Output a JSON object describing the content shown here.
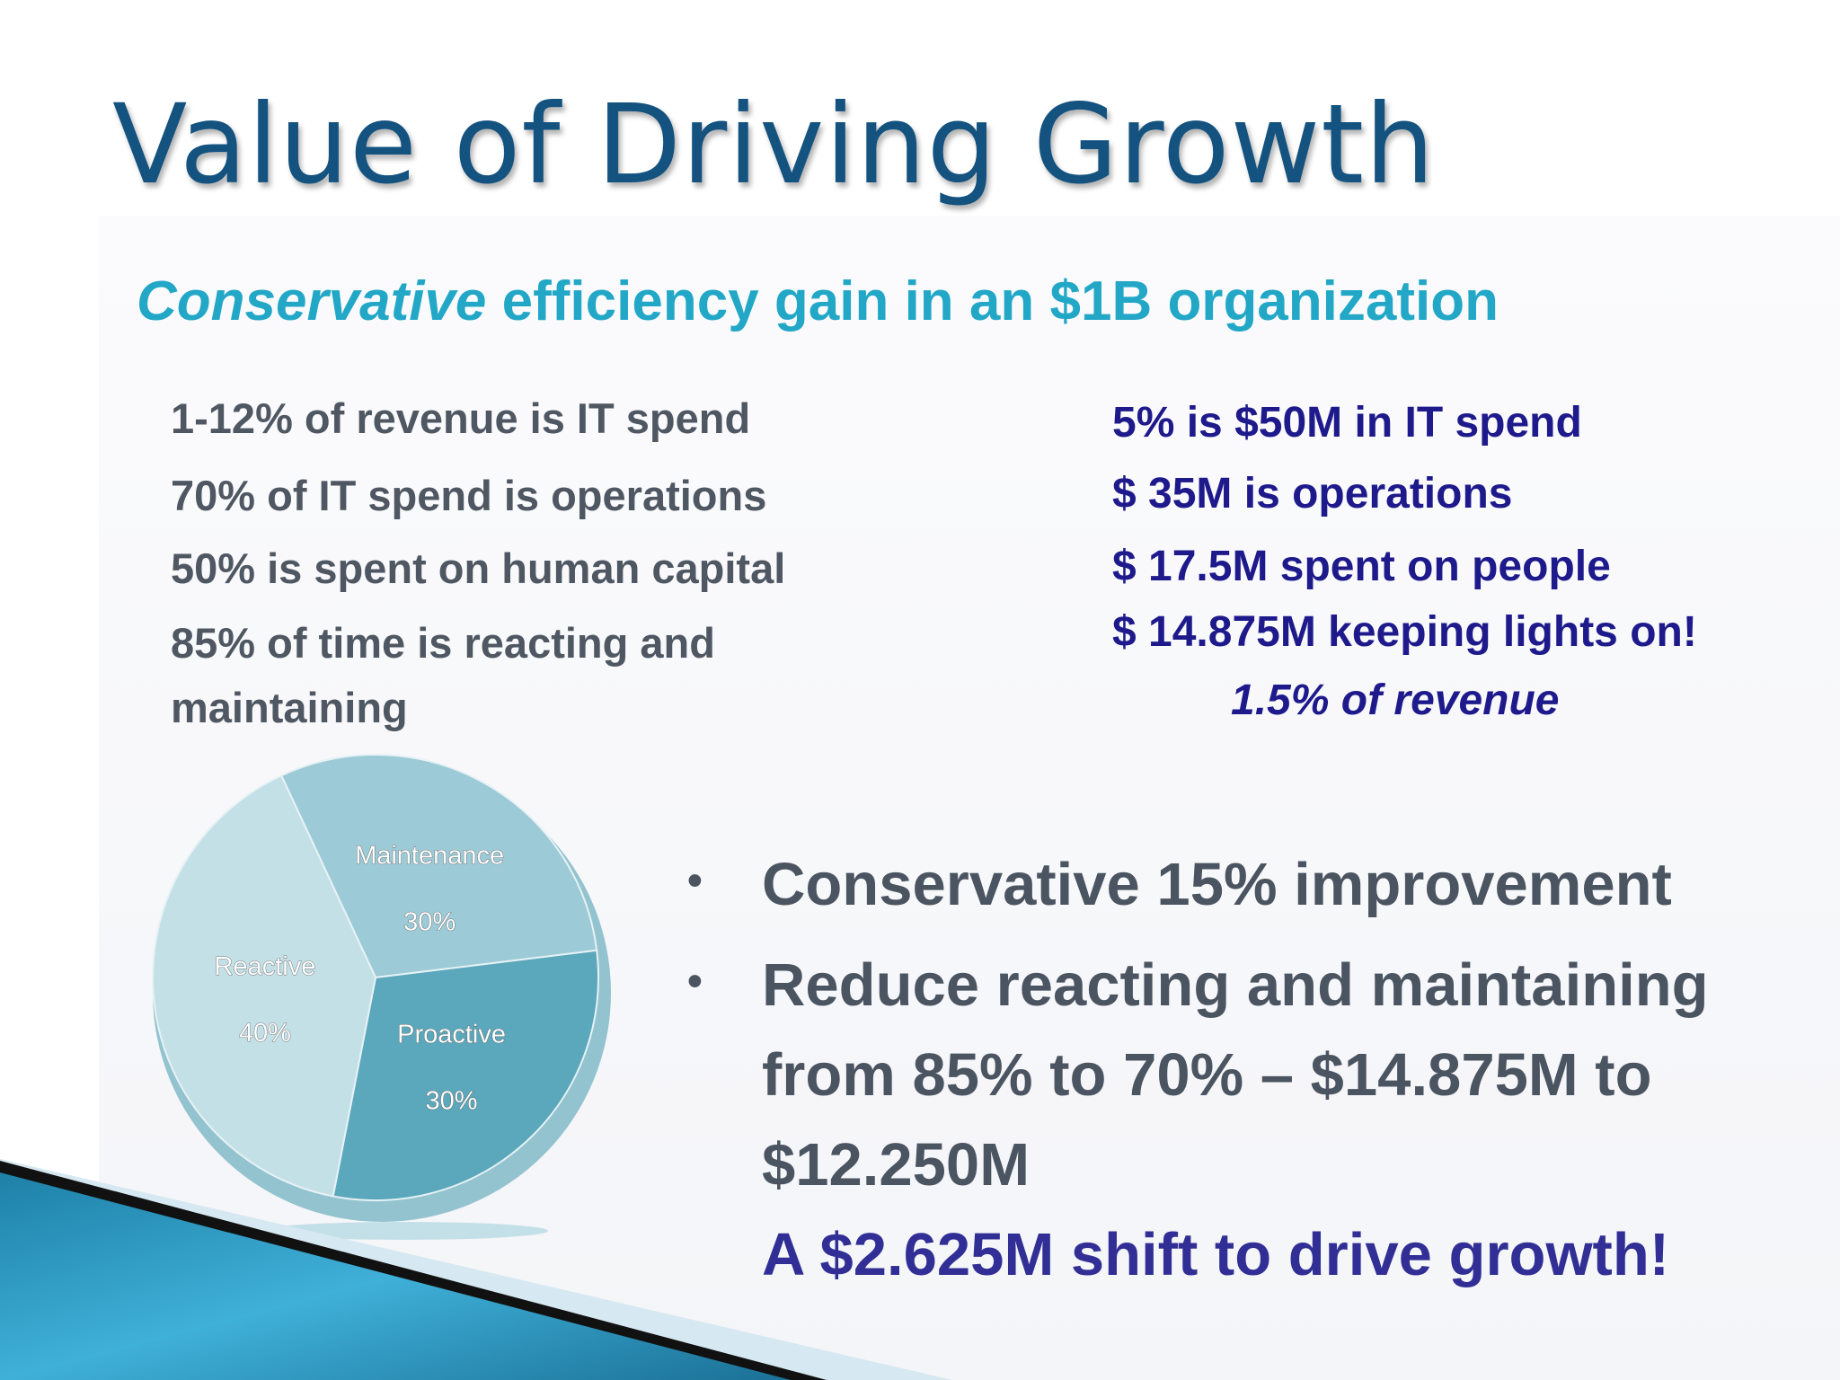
{
  "title": "Value of Driving Growth",
  "subtitle": {
    "emphasis": "Conservative",
    "rest": " efficiency gain in an $1B organization"
  },
  "left_stats": [
    "1-12% of revenue is IT spend",
    "70% of IT spend is operations",
    "50% is spent on human capital",
    "85% of time is reacting and",
    "maintaining"
  ],
  "right_stats": [
    "5% is $50M in IT spend",
    "$ 35M is operations",
    "$ 17.5M spent on people",
    "$ 14.875M keeping lights on!",
    "1.5% of revenue"
  ],
  "bullets": {
    "marker": "•",
    "first": "Conservative 15% improvement",
    "second_lines": [
      "Reduce reacting and maintaining",
      "from 85% to 70% –  $14.875M to",
      "$12.250M"
    ],
    "highlight": "A $2.625M shift to drive growth!"
  },
  "colors": {
    "title": "#14527f",
    "subtitle": "#22a7c7",
    "left_text": "#4f5862",
    "right_text": "#1e1a8c",
    "highlight": "#312f95"
  },
  "chart_data": {
    "type": "pie",
    "slices": [
      {
        "label": "Maintenance",
        "value": 30,
        "value_label": "30%",
        "color": "#9ccad6"
      },
      {
        "label": "Proactive",
        "value": 30,
        "value_label": "30%",
        "color": "#5ba7bb"
      },
      {
        "label": "Reactive",
        "value": 40,
        "value_label": "40%",
        "color": "#c4e0e7"
      }
    ]
  }
}
